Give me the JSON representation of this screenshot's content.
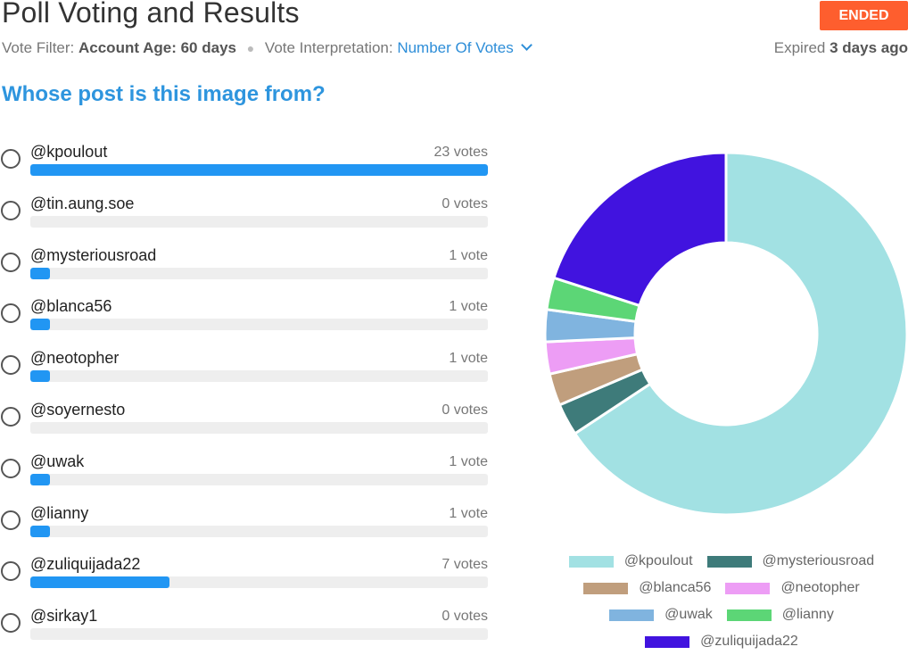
{
  "header": {
    "title": "Poll Voting and Results",
    "status_badge": "ENDED",
    "filter_label": "Vote Filter:",
    "filter_value": "Account Age: 60 days",
    "interp_label": "Vote Interpretation:",
    "interp_value": "Number Of Votes",
    "expired_label": "Expired",
    "expired_value": "3 days ago"
  },
  "question": "Whose post is this image from?",
  "options": [
    {
      "label": "@kpoulout",
      "votes_text": "23 votes",
      "votes": 23
    },
    {
      "label": "@tin.aung.soe",
      "votes_text": "0 votes",
      "votes": 0
    },
    {
      "label": "@mysteriousroad",
      "votes_text": "1 vote",
      "votes": 1
    },
    {
      "label": "@blanca56",
      "votes_text": "1 vote",
      "votes": 1
    },
    {
      "label": "@neotopher",
      "votes_text": "1 vote",
      "votes": 1
    },
    {
      "label": "@soyernesto",
      "votes_text": "0 votes",
      "votes": 0
    },
    {
      "label": "@uwak",
      "votes_text": "1 vote",
      "votes": 1
    },
    {
      "label": "@lianny",
      "votes_text": "1 vote",
      "votes": 1
    },
    {
      "label": "@zuliquijada22",
      "votes_text": "7 votes",
      "votes": 7
    },
    {
      "label": "@sirkay1",
      "votes_text": "0 votes",
      "votes": 0
    }
  ],
  "chart_data": {
    "type": "pie",
    "series": [
      {
        "name": "@kpoulout",
        "value": 23,
        "color": "#a2e1e3"
      },
      {
        "name": "@mysteriousroad",
        "value": 1,
        "color": "#3e7b7a"
      },
      {
        "name": "@blanca56",
        "value": 1,
        "color": "#c09e7d"
      },
      {
        "name": "@neotopher",
        "value": 1,
        "color": "#ed9df5"
      },
      {
        "name": "@uwak",
        "value": 1,
        "color": "#80b4df"
      },
      {
        "name": "@lianny",
        "value": 1,
        "color": "#5cd676"
      },
      {
        "name": "@zuliquijada22",
        "value": 7,
        "color": "#4113df"
      }
    ],
    "legend_rows": [
      [
        "@kpoulout",
        "@mysteriousroad"
      ],
      [
        "@blanca56",
        "@neotopher"
      ],
      [
        "@uwak",
        "@lianny"
      ],
      [
        "@zuliquijada22"
      ]
    ]
  },
  "colors": {
    "accent": "#2196f3",
    "badge": "#fe5e2e",
    "question": "#2e95de"
  }
}
